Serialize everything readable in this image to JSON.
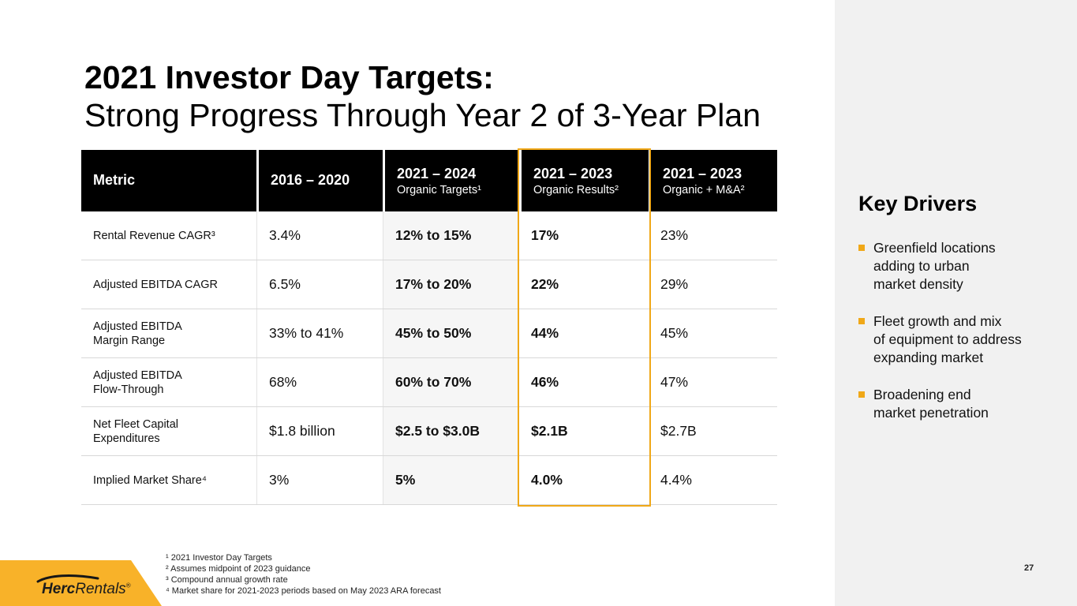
{
  "slide": {
    "title_line1": "2021 Investor Day Targets:",
    "title_line2": "Strong Progress Through Year 2 of 3-Year Plan",
    "page_number": "27"
  },
  "table": {
    "columns": [
      {
        "label": "Metric",
        "sublabel": ""
      },
      {
        "label": "2016 – 2020",
        "sublabel": ""
      },
      {
        "label": "2021 – 2024",
        "sublabel": "Organic Targets¹"
      },
      {
        "label": "2021 – 2023",
        "sublabel": "Organic Results²"
      },
      {
        "label": "2021 – 2023",
        "sublabel": "Organic + M&A²"
      }
    ],
    "highlighted_column": "2021 – 2023 Organic Results",
    "rows": [
      {
        "metric": "Rental Revenue CAGR³",
        "baseline": "3.4%",
        "organic_targets": "12% to 15%",
        "organic_results": "17%",
        "organic_ma": "23%"
      },
      {
        "metric": "Adjusted EBITDA CAGR",
        "baseline": "6.5%",
        "organic_targets": "17% to 20%",
        "organic_results": "22%",
        "organic_ma": "29%"
      },
      {
        "metric": "Adjusted EBITDA\nMargin Range",
        "baseline": "33% to 41%",
        "organic_targets": "45% to 50%",
        "organic_results": "44%",
        "organic_ma": "45%"
      },
      {
        "metric": "Adjusted EBITDA\nFlow-Through",
        "baseline": "68%",
        "organic_targets": "60% to 70%",
        "organic_results": "46%",
        "organic_ma": "47%"
      },
      {
        "metric": "Net Fleet Capital\nExpenditures",
        "baseline": "$1.8 billion",
        "organic_targets": "$2.5 to $3.0B",
        "organic_results": "$2.1B",
        "organic_ma": "$2.7B"
      },
      {
        "metric": "Implied Market Share⁴",
        "baseline": "3%",
        "organic_targets": "5%",
        "organic_results": "4.0%",
        "organic_ma": "4.4%"
      }
    ]
  },
  "key_drivers": {
    "title": "Key Drivers",
    "bullets": [
      "Greenfield locations\nadding to urban\nmarket density",
      "Fleet growth and mix\nof equipment to address\nexpanding market",
      "Broadening end\nmarket penetration"
    ]
  },
  "footnotes": [
    "¹ 2021 Investor Day Targets",
    "² Assumes midpoint of 2023 guidance",
    "³ Compound annual growth rate",
    "⁴ Market share for 2021-2023 periods based on May 2023 ARA forecast"
  ],
  "logo": {
    "brand_bold": "Herc",
    "brand_regular": "Rentals",
    "registered": "®"
  },
  "colors": {
    "accent_orange": "#f0a818",
    "logo_yellow": "#f8b229",
    "sidebar_gray": "#f1f1f1",
    "header_black": "#000000",
    "targets_column_bg": "#f6f6f6",
    "row_line": "#d8d8d8"
  }
}
